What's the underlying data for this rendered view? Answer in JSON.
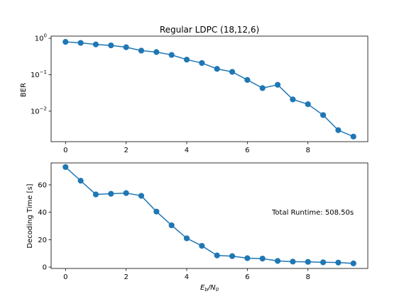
{
  "figure": {
    "title": "Regular LDPC (18,12,6)",
    "annotation": "Total Runtime: 508.50s",
    "xlabel_main": "E",
    "xlabel_sub1": "b",
    "xlabel_slash": "/N",
    "xlabel_sub2": "0",
    "series_color": "#1f77b4"
  },
  "chart_data": [
    {
      "type": "line",
      "title": "Regular LDPC (18,12,6)",
      "xlabel": "",
      "ylabel": "BER",
      "yscale": "log",
      "xlim": [
        -0.475,
        9.975
      ],
      "ylim": [
        0.00145,
        1.15
      ],
      "xticks": [
        0,
        2,
        4,
        6,
        8
      ],
      "yticks": [
        1,
        0.1,
        0.01
      ],
      "ytick_labels": [
        {
          "base": "10",
          "exp": "0"
        },
        {
          "base": "10",
          "exp": "-1"
        },
        {
          "base": "10",
          "exp": "-2"
        }
      ],
      "grid": false,
      "markers": true,
      "x": [
        0,
        0.5,
        1,
        1.5,
        2,
        2.5,
        3,
        3.5,
        4,
        4.5,
        5,
        5.5,
        6,
        6.5,
        7,
        7.5,
        8,
        8.5,
        9,
        9.5
      ],
      "y": [
        0.8,
        0.75,
        0.68,
        0.64,
        0.57,
        0.46,
        0.42,
        0.35,
        0.26,
        0.21,
        0.145,
        0.12,
        0.072,
        0.043,
        0.053,
        0.021,
        0.0155,
        0.0078,
        0.003,
        0.002
      ]
    },
    {
      "type": "line",
      "title": "",
      "xlabel": "E_b/N_0",
      "ylabel": "Decoding Time [s]",
      "yscale": "linear",
      "xlim": [
        -0.475,
        9.975
      ],
      "ylim": [
        -1.0,
        76.0
      ],
      "xticks": [
        0,
        2,
        4,
        6,
        8
      ],
      "yticks": [
        0,
        20,
        40,
        60
      ],
      "grid": false,
      "markers": true,
      "annotation": "Total Runtime: 508.50s",
      "x": [
        0,
        0.5,
        1,
        1.5,
        2,
        2.5,
        3,
        3.5,
        4,
        4.5,
        5,
        5.5,
        6,
        6.5,
        7,
        7.5,
        8,
        8.5,
        9,
        9.5
      ],
      "y": [
        73.0,
        63.0,
        53.0,
        53.5,
        54.0,
        52.0,
        40.5,
        30.5,
        21.0,
        15.5,
        8.5,
        8.0,
        6.5,
        6.2,
        4.5,
        4.0,
        3.8,
        3.5,
        3.3,
        2.7
      ]
    }
  ]
}
